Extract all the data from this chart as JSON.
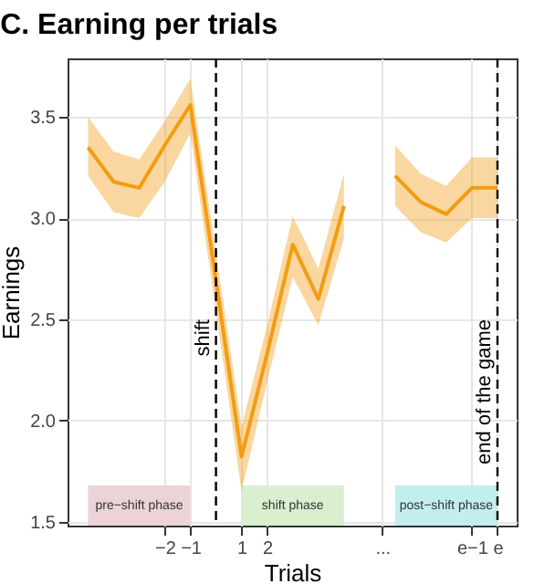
{
  "chart_data": {
    "type": "line",
    "title": "C. Earning per trials",
    "xlabel": "Trials",
    "ylabel": "Earnings",
    "xlim": [
      -5.8,
      11.75
    ],
    "ylim": [
      1.48,
      3.79
    ],
    "xticks": [
      {
        "value": -2,
        "label": "−2"
      },
      {
        "value": -1,
        "label": "−1"
      },
      1,
      2,
      {
        "value": 6.5,
        "label": "..."
      },
      {
        "value": 10,
        "label": "e−1"
      },
      {
        "value": 11,
        "label": "e"
      }
    ],
    "yticks": [
      1.5,
      {
        "value": 2,
        "label": "2.0"
      },
      2.5,
      {
        "value": 3,
        "label": "3.0"
      },
      3.5
    ],
    "grid": true,
    "series": [
      {
        "color": "#f39c12",
        "x": [
          -5,
          -4,
          -3,
          -2,
          -1,
          1,
          2,
          3,
          4,
          5
        ],
        "values": [
          3.35,
          3.18,
          3.15,
          3.36,
          3.56,
          1.82,
          2.33,
          2.87,
          2.6,
          3.06
        ],
        "lower": [
          3.21,
          3.03,
          3.0,
          3.18,
          3.42,
          1.65,
          2.19,
          2.71,
          2.47,
          2.9
        ],
        "upper": [
          3.5,
          3.33,
          3.29,
          3.48,
          3.69,
          1.97,
          2.47,
          3.01,
          2.75,
          3.22
        ]
      },
      {
        "color": "#f39c12",
        "x": [
          7,
          8,
          9,
          10,
          11
        ],
        "values": [
          3.21,
          3.08,
          3.02,
          3.15,
          3.15
        ],
        "lower": [
          3.06,
          2.93,
          2.88,
          3.0,
          3.0
        ],
        "upper": [
          3.36,
          3.22,
          3.16,
          3.3,
          3.3
        ]
      }
    ],
    "ref_lines": [
      {
        "axis": "x",
        "value": 0,
        "label": "shift",
        "line_style": "dashed",
        "color": "#000000"
      },
      {
        "axis": "x",
        "value": 11,
        "label": "end of the game",
        "line_style": "dashed",
        "color": "#000000"
      }
    ],
    "bands": [
      {
        "axis": "x",
        "from": -5,
        "to": -1,
        "label": "pre−shift phase",
        "color": "#ecd3d8"
      },
      {
        "axis": "x",
        "from": 1,
        "to": 5,
        "label": "shift phase",
        "color": "#d9efcf"
      },
      {
        "axis": "x",
        "from": 7,
        "to": 11,
        "label": "post−shift phase",
        "color": "#c3eef0"
      }
    ]
  }
}
